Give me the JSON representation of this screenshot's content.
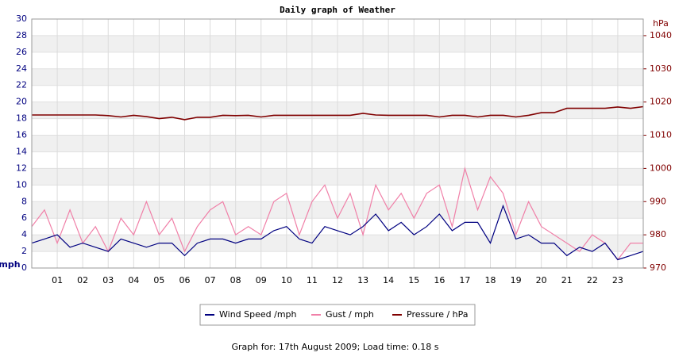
{
  "chart_data": {
    "type": "line",
    "title": "Daily graph of Weather",
    "y_label": "mph",
    "y2_label": "hPa",
    "x": [
      0,
      0.5,
      1,
      1.5,
      2,
      2.5,
      3,
      3.5,
      4,
      4.5,
      5,
      5.5,
      6,
      6.5,
      7,
      7.5,
      8,
      8.5,
      9,
      9.5,
      10,
      10.5,
      11,
      11.5,
      12,
      12.5,
      13,
      13.5,
      14,
      14.5,
      15,
      15.5,
      16,
      16.5,
      17,
      17.5,
      18,
      18.5,
      19,
      19.5,
      20,
      20.5,
      21,
      21.5,
      22,
      22.5,
      23,
      23.5,
      24
    ],
    "xlim": [
      0,
      24
    ],
    "xticks": [
      {
        "value": 1,
        "label": "01"
      },
      {
        "value": 2,
        "label": "02"
      },
      {
        "value": 3,
        "label": "03"
      },
      {
        "value": 4,
        "label": "04"
      },
      {
        "value": 5,
        "label": "05"
      },
      {
        "value": 6,
        "label": "06"
      },
      {
        "value": 7,
        "label": "07"
      },
      {
        "value": 8,
        "label": "08"
      },
      {
        "value": 9,
        "label": "09"
      },
      10,
      11,
      12,
      13,
      14,
      15,
      16,
      17,
      18,
      19,
      20,
      21,
      22,
      23
    ],
    "ylim": [
      0,
      30
    ],
    "yticks": [
      0,
      2,
      4,
      6,
      8,
      10,
      12,
      14,
      16,
      18,
      20,
      22,
      24,
      26,
      28,
      30
    ],
    "y2lim": [
      970,
      1045
    ],
    "y2ticks": [
      970,
      980,
      990,
      1000,
      1010,
      1020,
      1030,
      1040
    ],
    "grid": true,
    "series": [
      {
        "name": "Wind Speed /mph",
        "color": "#000080",
        "values": [
          3,
          3.5,
          4,
          2.5,
          3,
          2.5,
          2,
          3.5,
          3,
          2.5,
          3,
          3,
          1.5,
          3,
          3.5,
          3.5,
          3,
          3.5,
          3.5,
          4.5,
          5,
          3.5,
          3,
          5,
          4.5,
          4,
          5,
          6.5,
          4.5,
          5.5,
          4,
          5,
          6.5,
          4.5,
          5.5,
          5.5,
          3,
          7.5,
          3.5,
          4,
          3,
          3,
          1.5,
          2.5,
          2,
          3,
          1,
          1.5,
          2
        ]
      },
      {
        "name": "Gust / mph",
        "color": "#f080a8",
        "values": [
          5,
          7,
          3,
          7,
          3,
          5,
          2,
          6,
          4,
          8,
          4,
          6,
          2,
          5,
          7,
          8,
          4,
          5,
          4,
          8,
          9,
          4,
          8,
          10,
          6,
          9,
          4,
          10,
          7,
          9,
          6,
          9,
          10,
          5,
          12,
          7,
          11,
          9,
          4,
          8,
          5,
          4,
          3,
          2,
          4,
          3,
          1,
          3,
          3
        ]
      },
      {
        "name": "Pressure / hPa",
        "color": "#800000",
        "axis": "y2",
        "values": [
          1016.1,
          1016.1,
          1016.1,
          1016.1,
          1016.1,
          1016.1,
          1015.9,
          1015.5,
          1016,
          1015.6,
          1015,
          1015.4,
          1014.7,
          1015.4,
          1015.4,
          1016,
          1015.9,
          1016,
          1015.5,
          1016,
          1016,
          1016,
          1016,
          1016,
          1016,
          1016,
          1016.6,
          1016.1,
          1016,
          1016,
          1016,
          1016,
          1015.5,
          1016,
          1016,
          1015.5,
          1016,
          1016,
          1015.5,
          1016,
          1016.8,
          1016.8,
          1018.1,
          1018.1,
          1018.1,
          1018.1,
          1018.5,
          1018.1,
          1018.6
        ]
      }
    ]
  },
  "footer": "Graph for: 17th August 2009; Load time: 0.18 s"
}
